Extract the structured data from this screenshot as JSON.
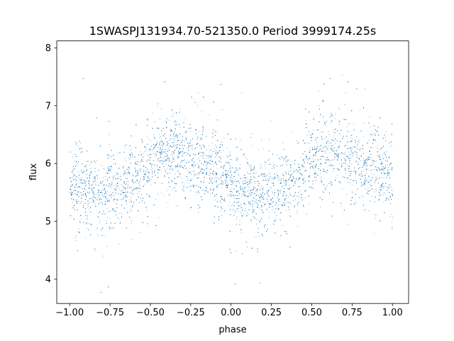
{
  "chart_data": {
    "type": "scatter",
    "title": "1SWASPJ131934.70-521350.0 Period 3999174.25s",
    "xlabel": "phase",
    "ylabel": "flux",
    "xlim": [
      -1.08,
      1.1
    ],
    "ylim": [
      3.58,
      8.12
    ],
    "xticks": [
      -1.0,
      -0.75,
      -0.5,
      -0.25,
      0.0,
      0.25,
      0.5,
      0.75,
      1.0
    ],
    "xtick_labels": [
      "−1.00",
      "−0.75",
      "−0.50",
      "−0.25",
      "0.00",
      "0.25",
      "0.50",
      "0.75",
      "1.00"
    ],
    "yticks": [
      4,
      5,
      6,
      7,
      8
    ],
    "ytick_labels": [
      "4",
      "5",
      "6",
      "7",
      "8"
    ],
    "grid": false,
    "series": [
      {
        "color": "#1f77b4",
        "marker": "point",
        "point_count_approx": 30000,
        "x_range": [
          -1.0,
          1.0
        ],
        "profile_phase": [
          -1.0,
          -0.9,
          -0.8,
          -0.7,
          -0.6,
          -0.55,
          -0.5,
          -0.45,
          -0.4,
          -0.35,
          -0.3,
          -0.25,
          -0.2,
          -0.15,
          -0.1,
          -0.05,
          0.0,
          0.1,
          0.2,
          0.3,
          0.4,
          0.45,
          0.5,
          0.55,
          0.6,
          0.65,
          0.7,
          0.75,
          0.8,
          0.85,
          0.9,
          0.95,
          1.0
        ],
        "profile_flux_median": [
          5.6,
          5.55,
          5.45,
          5.55,
          5.7,
          5.85,
          6.0,
          6.2,
          6.25,
          6.15,
          6.1,
          6.05,
          6.0,
          5.95,
          5.9,
          5.8,
          5.6,
          5.5,
          5.45,
          5.55,
          5.7,
          5.9,
          6.05,
          6.2,
          6.25,
          6.2,
          6.1,
          6.05,
          6.0,
          5.95,
          5.9,
          5.85,
          5.6
        ],
        "scatter_spread": 0.35
      }
    ]
  }
}
